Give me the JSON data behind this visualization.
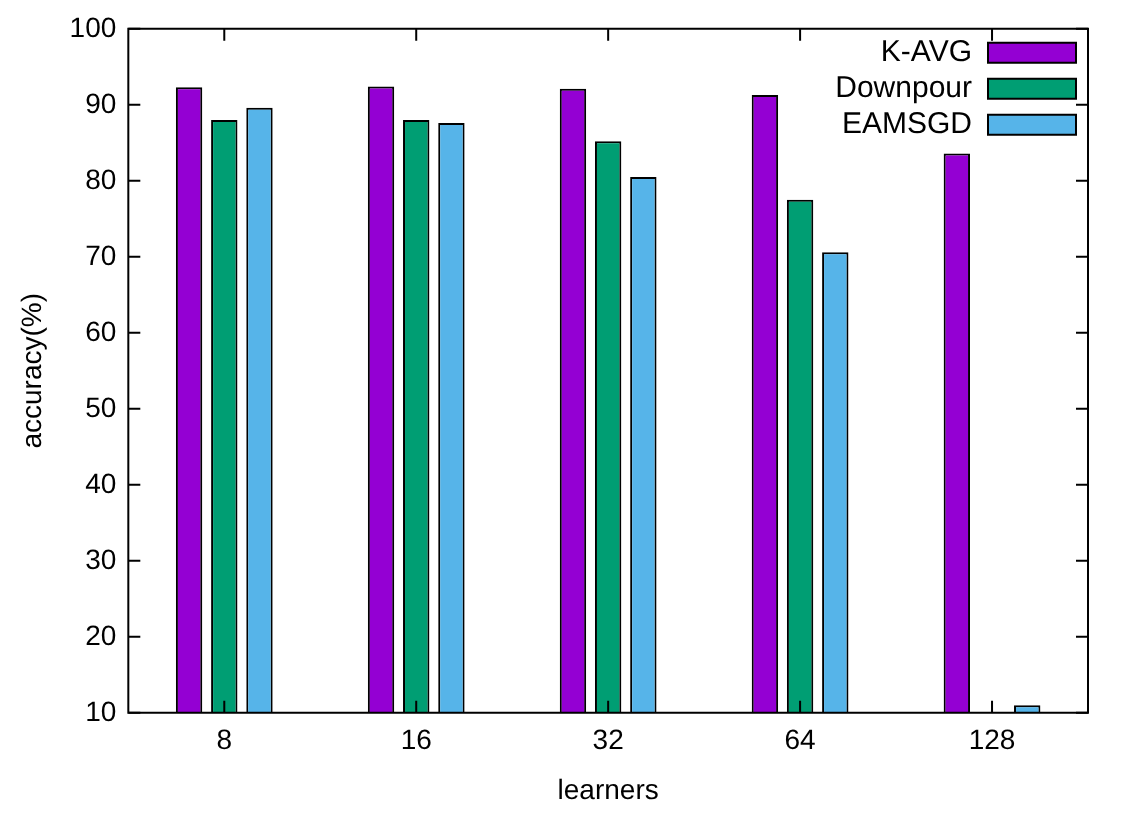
{
  "chart_data": {
    "type": "bar",
    "xlabel": "learners",
    "ylabel": "accuracy(%)",
    "categories": [
      "8",
      "16",
      "32",
      "64",
      "128"
    ],
    "series": [
      {
        "name": "K-AVG",
        "color": "#9400d3",
        "values": [
          92.3,
          92.4,
          92.1,
          91.3,
          83.6
        ]
      },
      {
        "name": "Downpour",
        "color": "#009e73",
        "values": [
          88.0,
          88.0,
          85.2,
          77.5,
          10
        ]
      },
      {
        "name": "EAMSGD",
        "color": "#56b4e9",
        "values": [
          89.6,
          87.6,
          80.5,
          70.6,
          11
        ]
      }
    ],
    "ylim": [
      10,
      100
    ],
    "yticks": [
      10,
      20,
      30,
      40,
      50,
      60,
      70,
      80,
      90,
      100
    ],
    "grid": false,
    "legend": "top right"
  }
}
